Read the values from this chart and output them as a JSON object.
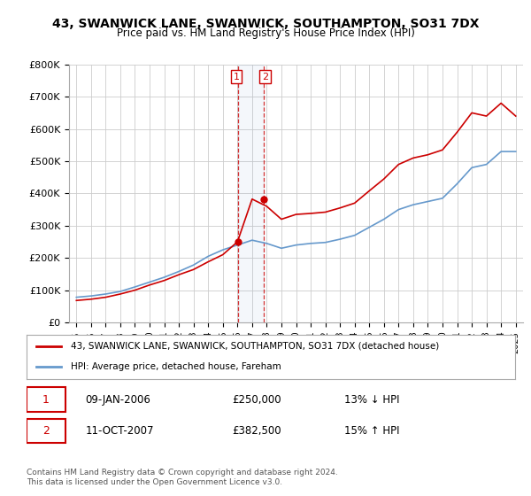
{
  "title": "43, SWANWICK LANE, SWANWICK, SOUTHAMPTON, SO31 7DX",
  "subtitle": "Price paid vs. HM Land Registry's House Price Index (HPI)",
  "legend_line1": "43, SWANWICK LANE, SWANWICK, SOUTHAMPTON, SO31 7DX (detached house)",
  "legend_line2": "HPI: Average price, detached house, Fareham",
  "footer1": "Contains HM Land Registry data © Crown copyright and database right 2024.",
  "footer2": "This data is licensed under the Open Government Licence v3.0.",
  "annotation1": {
    "num": "1",
    "date": "09-JAN-2006",
    "price": "£250,000",
    "pct": "13% ↓ HPI"
  },
  "annotation2": {
    "num": "2",
    "date": "11-OCT-2007",
    "price": "£382,500",
    "pct": "15% ↑ HPI"
  },
  "sale1_year": 2006.03,
  "sale1_price": 250000,
  "sale2_year": 2007.79,
  "sale2_price": 382500,
  "hpi_color": "#6699cc",
  "price_color": "#cc0000",
  "vline_color": "#cc0000",
  "ylim": [
    0,
    800000
  ],
  "xlim_start": 1995,
  "xlim_end": 2025.5,
  "background_color": "#ffffff",
  "grid_color": "#cccccc",
  "hpi_years": [
    1995,
    1996,
    1997,
    1998,
    1999,
    2000,
    2001,
    2002,
    2003,
    2004,
    2005,
    2006,
    2007,
    2008,
    2009,
    2010,
    2011,
    2012,
    2013,
    2014,
    2015,
    2016,
    2017,
    2018,
    2019,
    2020,
    2021,
    2022,
    2023,
    2024,
    2025
  ],
  "hpi_values": [
    78000,
    82000,
    88000,
    96000,
    110000,
    125000,
    140000,
    158000,
    178000,
    205000,
    225000,
    240000,
    255000,
    245000,
    230000,
    240000,
    245000,
    248000,
    258000,
    270000,
    295000,
    320000,
    350000,
    365000,
    375000,
    385000,
    430000,
    480000,
    490000,
    530000,
    530000
  ],
  "price_years": [
    1995,
    1996,
    1997,
    1998,
    1999,
    2000,
    2001,
    2002,
    2003,
    2004,
    2005,
    2006,
    2007,
    2008,
    2009,
    2010,
    2011,
    2012,
    2013,
    2014,
    2015,
    2016,
    2017,
    2018,
    2019,
    2020,
    2021,
    2022,
    2023,
    2024,
    2025
  ],
  "price_values": [
    68000,
    72000,
    78000,
    88000,
    100000,
    116000,
    130000,
    148000,
    164000,
    188000,
    210000,
    250000,
    382500,
    360000,
    320000,
    335000,
    338000,
    342000,
    355000,
    370000,
    408000,
    445000,
    490000,
    510000,
    520000,
    535000,
    590000,
    650000,
    640000,
    680000,
    640000
  ]
}
